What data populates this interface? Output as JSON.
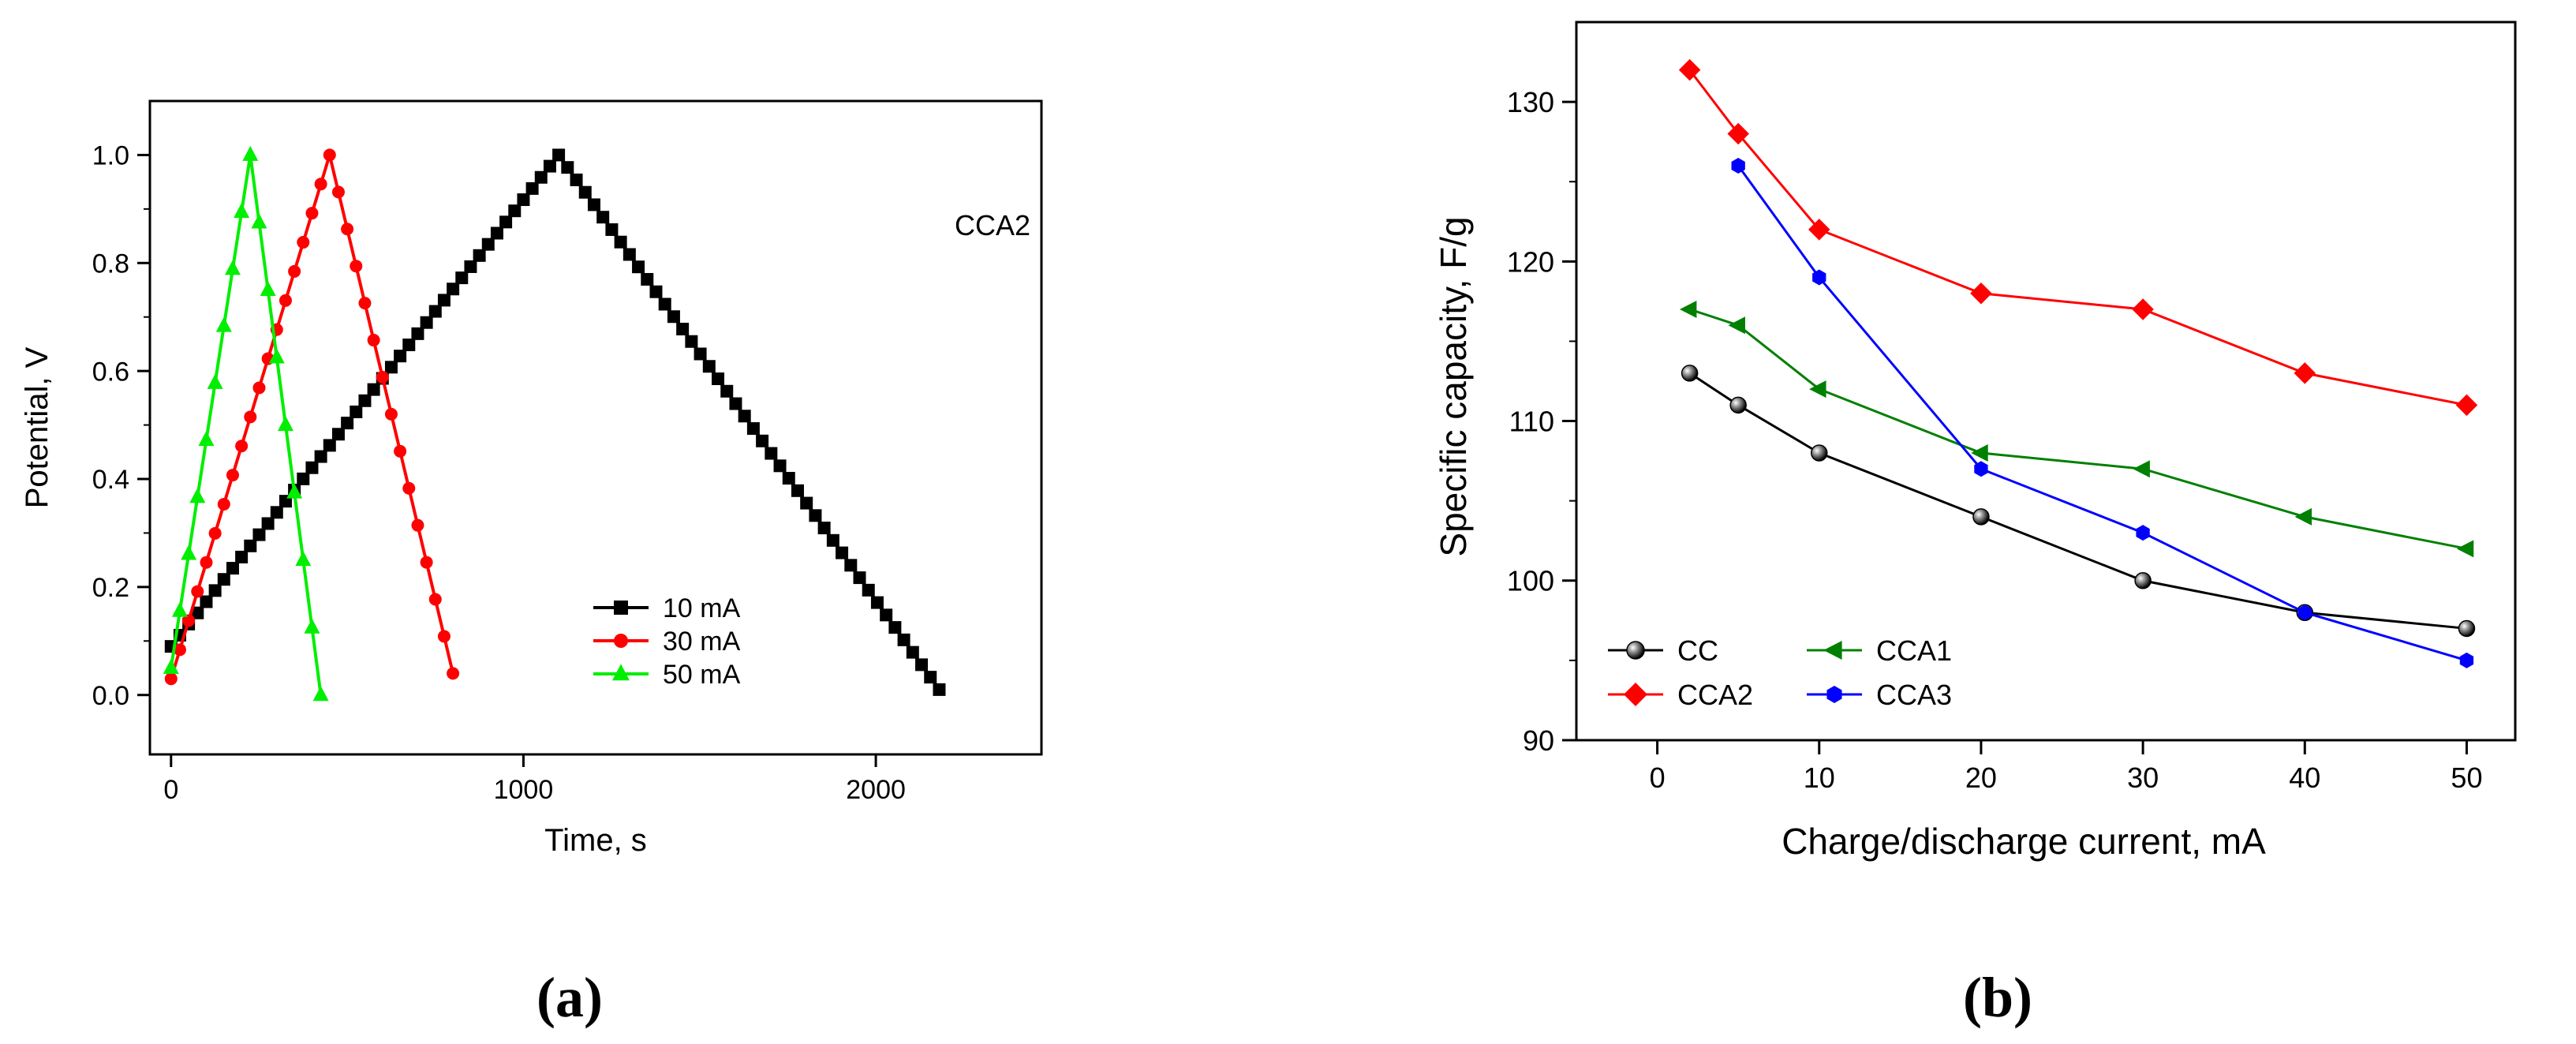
{
  "chart_data": [
    {
      "panel": "(a)",
      "type": "line",
      "xlabel": "Time, s",
      "ylabel": "Potential, V",
      "xlim": [
        -60,
        2470
      ],
      "ylim": [
        -0.11,
        1.1
      ],
      "xticks": [
        0,
        1000,
        2000
      ],
      "yticks": [
        0.0,
        0.2,
        0.4,
        0.6,
        0.8,
        1.0
      ],
      "ytick_labels": [
        "0.0",
        "0.2",
        "0.4",
        "0.6",
        "0.8",
        "1.0"
      ],
      "annotation": "CCA2",
      "legend_position": "bottom-right",
      "series": [
        {
          "name": "10 mA",
          "color": "#000000",
          "marker": "square",
          "x": [
            0,
            1100,
            2180
          ],
          "y": [
            0.09,
            1.0,
            0.01
          ],
          "marker_step": 25
        },
        {
          "name": "30 mA",
          "color": "#ff0000",
          "marker": "circle",
          "x": [
            0,
            450,
            800
          ],
          "y": [
            0.03,
            1.0,
            0.04
          ],
          "marker_step": 25
        },
        {
          "name": "50 mA",
          "color": "#00ee00",
          "marker": "triangle-up",
          "x": [
            0,
            225,
            425
          ],
          "y": [
            0.05,
            1.0,
            0.0
          ],
          "marker_step": 25
        }
      ]
    },
    {
      "panel": "(b)",
      "type": "line",
      "xlabel": "Charge/discharge current, mA",
      "ylabel": "Specific capacity, F/g",
      "xlim": [
        -5,
        53
      ],
      "ylim": [
        90,
        135
      ],
      "xticks": [
        0,
        10,
        20,
        30,
        40,
        50
      ],
      "yticks": [
        90,
        100,
        110,
        120,
        130
      ],
      "legend_position": "bottom-left",
      "series": [
        {
          "name": "CC",
          "color": "#000000",
          "marker": "sphere",
          "x": [
            2,
            5,
            10,
            20,
            30,
            40,
            50
          ],
          "y": [
            113,
            111,
            108,
            104,
            100,
            98,
            97
          ]
        },
        {
          "name": "CCA1",
          "color": "#008000",
          "marker": "triangle-left",
          "x": [
            2,
            5,
            10,
            20,
            30,
            40,
            50
          ],
          "y": [
            117,
            116,
            112,
            108,
            107,
            104,
            102
          ]
        },
        {
          "name": "CCA2",
          "color": "#ff0000",
          "marker": "diamond",
          "x": [
            2,
            5,
            10,
            20,
            30,
            40,
            50
          ],
          "y": [
            132,
            128,
            122,
            118,
            117,
            113,
            111
          ]
        },
        {
          "name": "CCA3",
          "color": "#0000ff",
          "marker": "hexagon",
          "x": [
            5,
            10,
            20,
            30,
            40,
            50
          ],
          "y": [
            126,
            119,
            107,
            103,
            98,
            95
          ]
        }
      ]
    }
  ]
}
